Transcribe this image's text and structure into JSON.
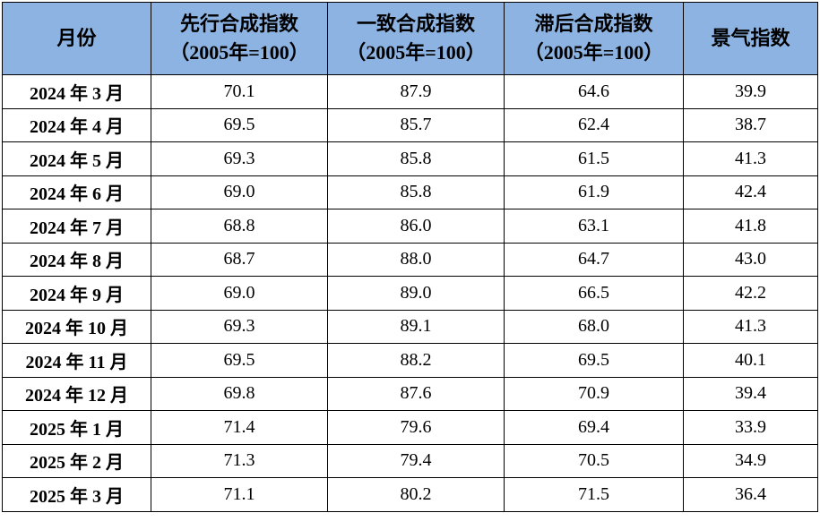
{
  "table": {
    "header": [
      {
        "lines": [
          "月份"
        ]
      },
      {
        "lines": [
          "先行合成指数",
          "（2005年=100）"
        ]
      },
      {
        "lines": [
          "一致合成指数",
          "（2005年=100）"
        ]
      },
      {
        "lines": [
          "滞后合成指数",
          "（2005年=100）"
        ]
      },
      {
        "lines": [
          "景气指数"
        ]
      }
    ],
    "rows": [
      [
        "2024 年 3 月",
        "70.1",
        "87.9",
        "64.6",
        "39.9"
      ],
      [
        "2024 年 4 月",
        "69.5",
        "85.7",
        "62.4",
        "38.7"
      ],
      [
        "2024 年 5 月",
        "69.3",
        "85.8",
        "61.5",
        "41.3"
      ],
      [
        "2024 年 6 月",
        "69.0",
        "85.8",
        "61.9",
        "42.4"
      ],
      [
        "2024 年 7 月",
        "68.8",
        "86.0",
        "63.1",
        "41.8"
      ],
      [
        "2024 年 8 月",
        "68.7",
        "88.0",
        "64.7",
        "43.0"
      ],
      [
        "2024 年 9 月",
        "69.0",
        "89.0",
        "66.5",
        "42.2"
      ],
      [
        "2024 年 10 月",
        "69.3",
        "89.1",
        "68.0",
        "41.3"
      ],
      [
        "2024 年 11 月",
        "69.5",
        "88.2",
        "69.5",
        "40.1"
      ],
      [
        "2024 年 12 月",
        "69.8",
        "87.6",
        "70.9",
        "39.4"
      ],
      [
        "2025 年 1 月",
        "71.4",
        "79.6",
        "69.4",
        "33.9"
      ],
      [
        "2025 年 2 月",
        "71.3",
        "79.4",
        "70.5",
        "34.9"
      ],
      [
        "2025 年 3 月",
        "71.1",
        "80.2",
        "71.5",
        "36.4"
      ]
    ]
  }
}
